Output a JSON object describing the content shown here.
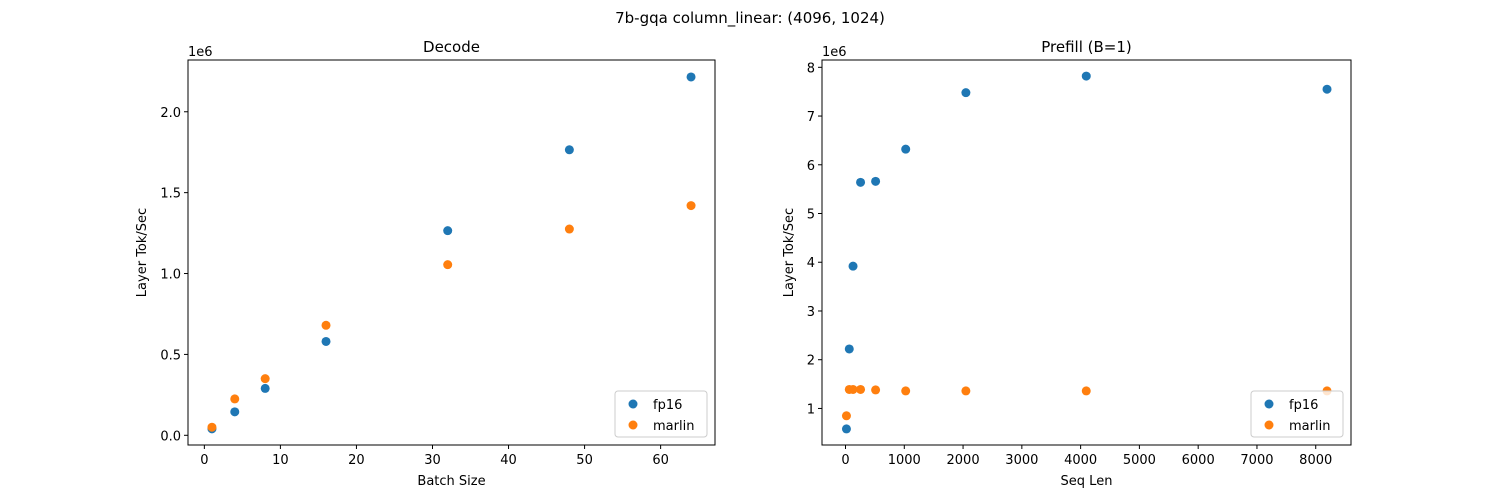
{
  "figure": {
    "suptitle": "7b-gqa column_linear: (4096, 1024)"
  },
  "colors": {
    "fp16": "#1f77b4",
    "marlin": "#ff7f0e"
  },
  "chart_data": [
    {
      "type": "scatter",
      "title": "Decode",
      "xlabel": "Batch Size",
      "ylabel": "Layer Tok/Sec",
      "y_offset_label": "1e6",
      "xlim": [
        -2.15,
        67.15
      ],
      "ylim": [
        -0.06,
        2.32
      ],
      "xticks": [
        0,
        10,
        20,
        30,
        40,
        50,
        60
      ],
      "xtick_labels": [
        "0",
        "10",
        "20",
        "30",
        "40",
        "50",
        "60"
      ],
      "yticks": [
        0.0,
        0.5,
        1.0,
        1.5,
        2.0
      ],
      "ytick_labels": [
        "0.0",
        "0.5",
        "1.0",
        "1.5",
        "2.0"
      ],
      "legend": "lower right",
      "series": [
        {
          "name": "fp16",
          "points": [
            {
              "x": 1,
              "y": 0.04
            },
            {
              "x": 4,
              "y": 0.145
            },
            {
              "x": 8,
              "y": 0.29
            },
            {
              "x": 16,
              "y": 0.58
            },
            {
              "x": 32,
              "y": 1.265
            },
            {
              "x": 48,
              "y": 1.765
            },
            {
              "x": 64,
              "y": 2.215
            }
          ]
        },
        {
          "name": "marlin",
          "points": [
            {
              "x": 1,
              "y": 0.05
            },
            {
              "x": 4,
              "y": 0.225
            },
            {
              "x": 8,
              "y": 0.35
            },
            {
              "x": 16,
              "y": 0.68
            },
            {
              "x": 32,
              "y": 1.055
            },
            {
              "x": 48,
              "y": 1.275
            },
            {
              "x": 64,
              "y": 1.42
            }
          ]
        }
      ]
    },
    {
      "type": "scatter",
      "title": "Prefill (B=1)",
      "xlabel": "Seq Len",
      "ylabel": "Layer Tok/Sec",
      "y_offset_label": "1e6",
      "xlim": [
        -400,
        8600
      ],
      "ylim": [
        0.25,
        8.15
      ],
      "xticks": [
        0,
        1000,
        2000,
        3000,
        4000,
        5000,
        6000,
        7000,
        8000
      ],
      "xtick_labels": [
        "0",
        "1000",
        "2000",
        "3000",
        "4000",
        "5000",
        "6000",
        "7000",
        "8000"
      ],
      "yticks": [
        1,
        2,
        3,
        4,
        5,
        6,
        7,
        8
      ],
      "ytick_labels": [
        "1",
        "2",
        "3",
        "4",
        "5",
        "6",
        "7",
        "8"
      ],
      "legend": "lower right",
      "series": [
        {
          "name": "fp16",
          "points": [
            {
              "x": 16,
              "y": 0.58
            },
            {
              "x": 64,
              "y": 2.22
            },
            {
              "x": 128,
              "y": 3.92
            },
            {
              "x": 256,
              "y": 5.64
            },
            {
              "x": 512,
              "y": 5.66
            },
            {
              "x": 1024,
              "y": 6.32
            },
            {
              "x": 2048,
              "y": 7.48
            },
            {
              "x": 4096,
              "y": 7.82
            },
            {
              "x": 8192,
              "y": 7.55
            }
          ]
        },
        {
          "name": "marlin",
          "points": [
            {
              "x": 16,
              "y": 0.85
            },
            {
              "x": 64,
              "y": 1.39
            },
            {
              "x": 128,
              "y": 1.39
            },
            {
              "x": 256,
              "y": 1.39
            },
            {
              "x": 512,
              "y": 1.38
            },
            {
              "x": 1024,
              "y": 1.36
            },
            {
              "x": 2048,
              "y": 1.36
            },
            {
              "x": 4096,
              "y": 1.36
            },
            {
              "x": 8192,
              "y": 1.36
            }
          ]
        }
      ]
    }
  ]
}
